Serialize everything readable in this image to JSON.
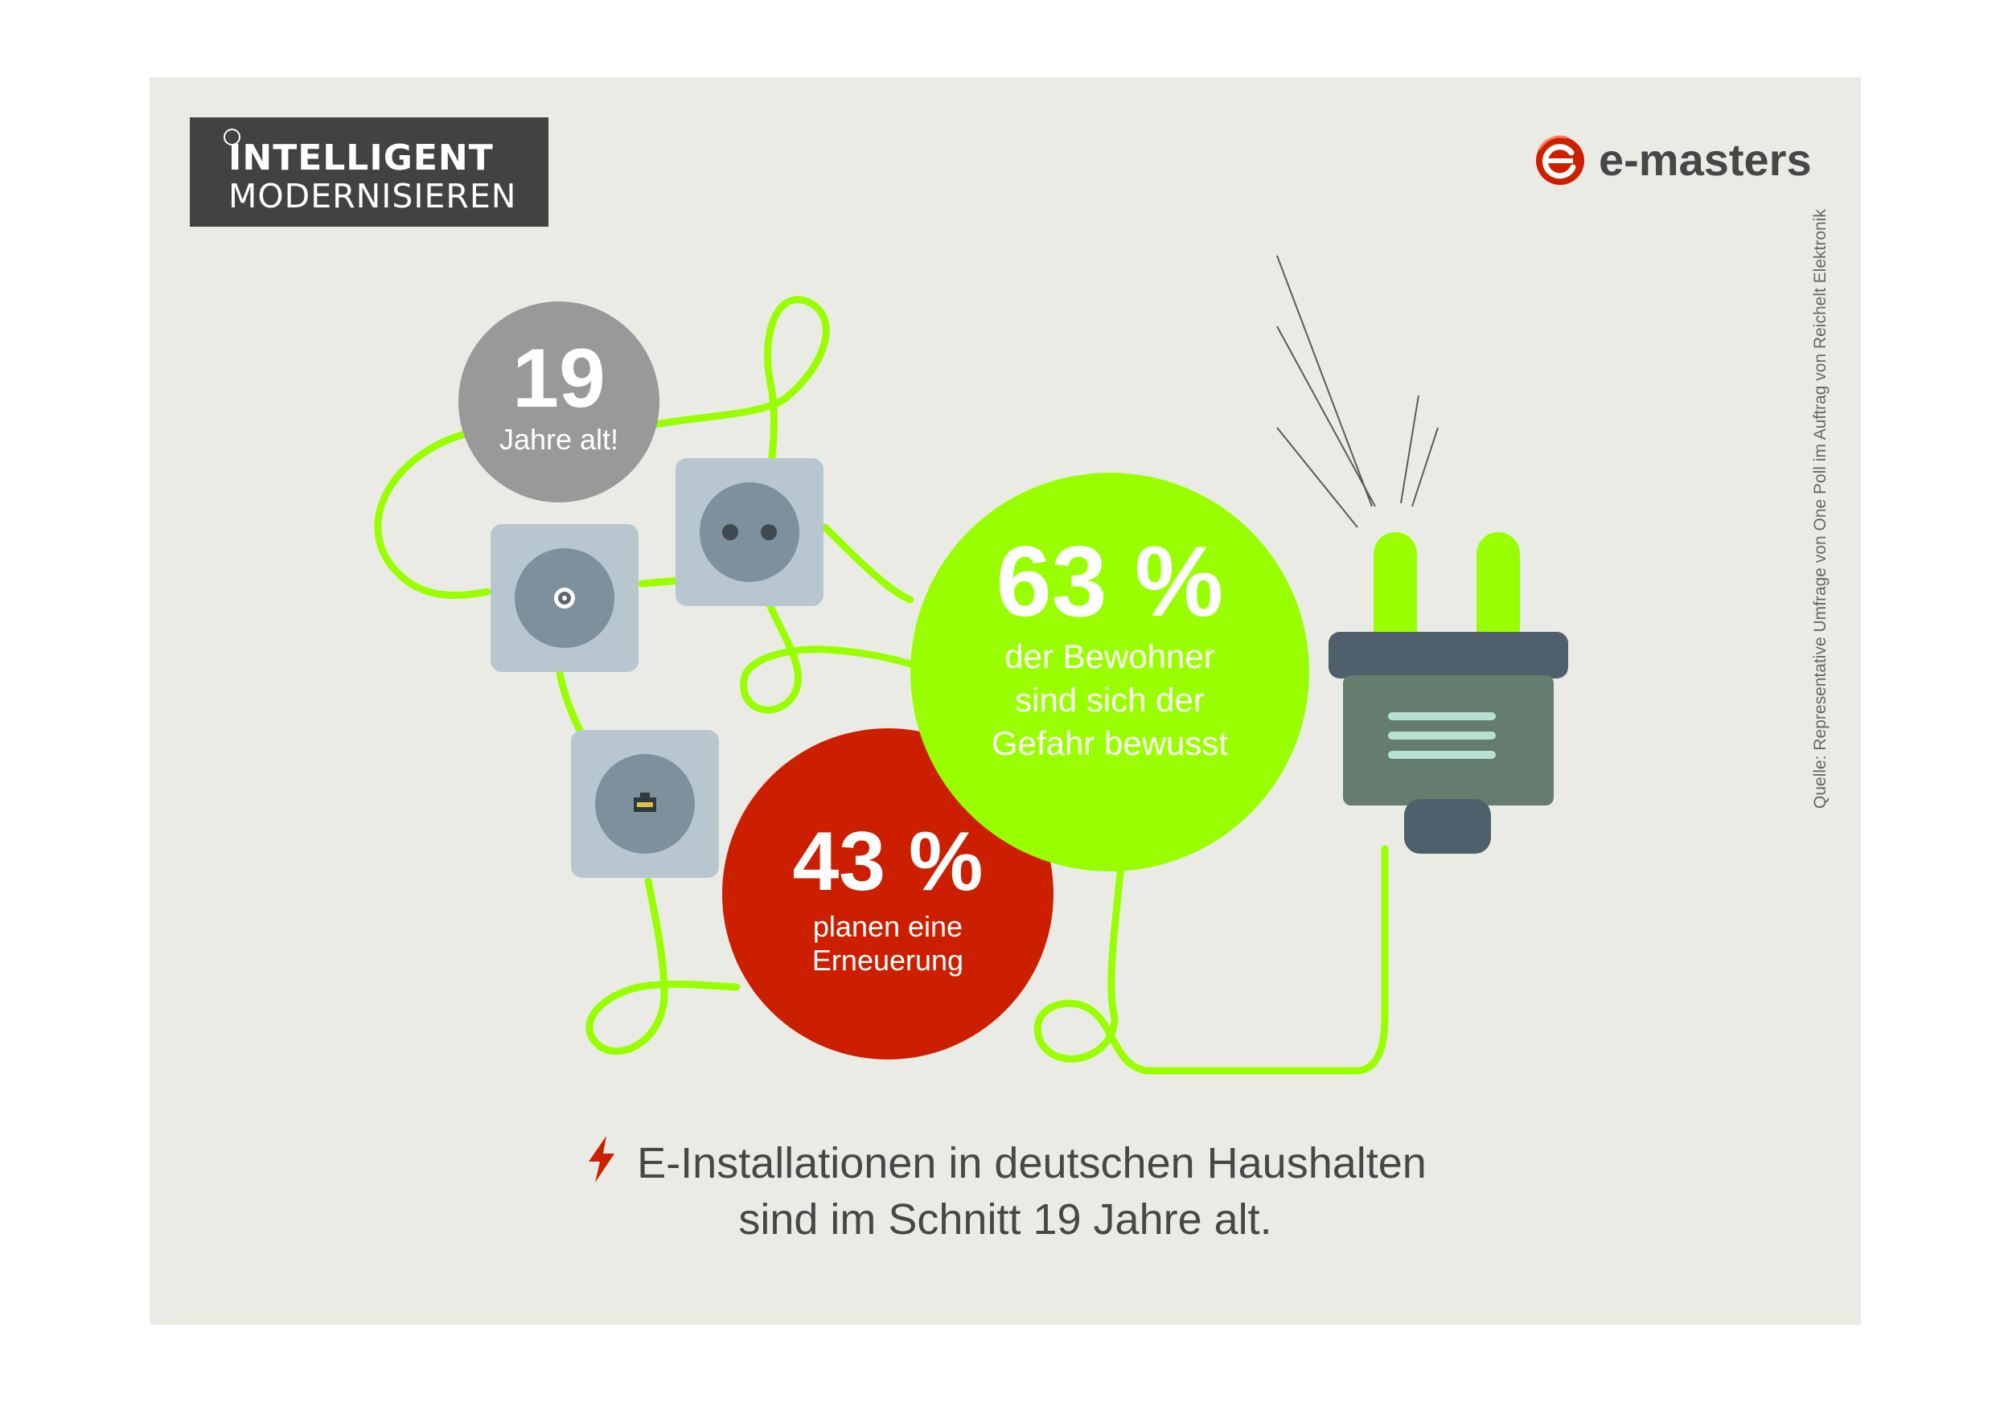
{
  "brand": {
    "line1": "INTELLIGENT",
    "line2": "MODERNISIEREN"
  },
  "logo": {
    "text": "e-masters",
    "mark_icon": "e-masters-logo-icon",
    "color": "#cc1f00"
  },
  "badges": {
    "age": {
      "value": "19",
      "label": "Jahre alt!",
      "color": "#999999"
    },
    "aware": {
      "value": "63 %",
      "label_lines": [
        "der Bewohner",
        "sind sich der",
        "Gefahr bewusst"
      ],
      "color": "#99ff00"
    },
    "renew": {
      "value": "43 %",
      "label_lines": [
        "planen eine",
        "Erneuerung"
      ],
      "color": "#cc1f00"
    }
  },
  "headline": {
    "line1": "E-Installationen in deutschen Haushalten",
    "line2": "sind im Schnitt 19 Jahre alt.",
    "icon": "lightning-bolt-icon"
  },
  "source": "Quelle: Representative Umfrage von One Poll im Auftrag von Reichelt Elektronik",
  "colors": {
    "background": "#ebebe6",
    "cable": "#99ff00",
    "socket": "#b8c6cf",
    "socket_face": "#7d909b",
    "plug_body": "#647d6e",
    "plug_cap": "#4f5f6b"
  }
}
